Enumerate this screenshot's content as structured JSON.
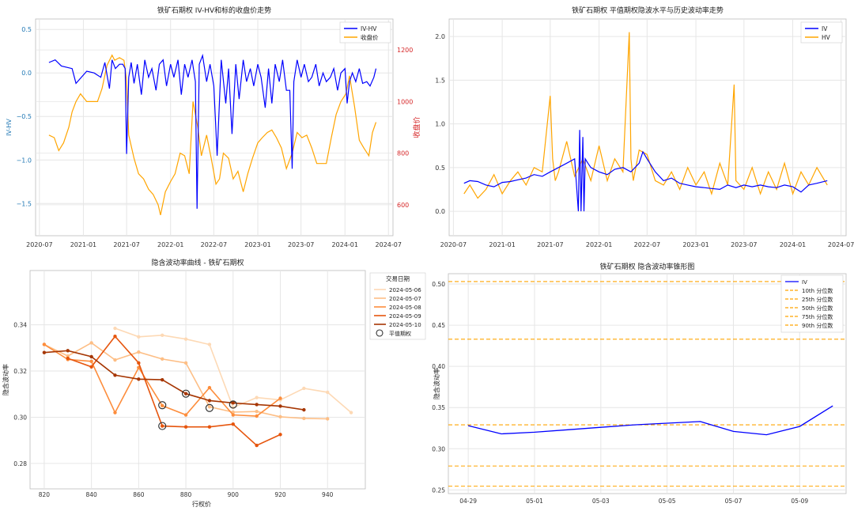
{
  "colors": {
    "iv": "#0000ff",
    "hv": "#ffa500",
    "grid": "#e6e6e6",
    "spine": "#bbbbbb",
    "left_axis": "#1f77b4",
    "right_axis": "#d62728",
    "smile": [
      "#fdd9b5",
      "#fdbe85",
      "#fd8d3c",
      "#e6550d",
      "#a63603"
    ]
  },
  "chart_data": [
    {
      "type": "line",
      "title": "铁矿石期权 IV-HV和标的收盘价走势",
      "xlabel": "",
      "ylabel": "IV-HV",
      "ylabel_right": "收盘价",
      "x_ticks": [
        "2020-07",
        "2021-01",
        "2021-07",
        "2022-01",
        "2022-07",
        "2023-01",
        "2023-07",
        "2024-01",
        "2024-07"
      ],
      "y_ticks": [
        "0.5",
        "0.0",
        "−0.5",
        "−1.0",
        "−1.5"
      ],
      "y_right_ticks": [
        "1200",
        "1000",
        "800",
        "600"
      ],
      "xlim": [
        "2020-06-15",
        "2024-07-20"
      ],
      "ylim": [
        -1.87,
        0.62
      ],
      "ylim_right": [
        480,
        1320
      ],
      "grid": true,
      "legend": {
        "position": "top-right",
        "entries": [
          "IV-HV",
          "收盘价"
        ]
      },
      "series": [
        {
          "name": "IV-HV",
          "axis": "left",
          "x": [
            "2020-08-10",
            "2020-09-05",
            "2020-10-01",
            "2020-11-15",
            "2020-12-01",
            "2021-01-15",
            "2021-02-15",
            "2021-03-15",
            "2021-04-01",
            "2021-04-20",
            "2021-05-01",
            "2021-05-15",
            "2021-06-01",
            "2021-06-15",
            "2021-06-25",
            "2021-07-01",
            "2021-07-10",
            "2021-07-20",
            "2021-08-01",
            "2021-08-15",
            "2021-09-01",
            "2021-09-15",
            "2021-10-01",
            "2021-10-15",
            "2021-11-01",
            "2021-11-15",
            "2021-12-01",
            "2021-12-15",
            "2022-01-01",
            "2022-01-15",
            "2022-02-01",
            "2022-02-15",
            "2022-03-01",
            "2022-03-15",
            "2022-04-01",
            "2022-04-15",
            "2022-04-22",
            "2022-05-01",
            "2022-05-15",
            "2022-06-01",
            "2022-06-15",
            "2022-07-01",
            "2022-07-15",
            "2022-08-01",
            "2022-08-20",
            "2022-09-01",
            "2022-09-15",
            "2022-10-01",
            "2022-10-15",
            "2022-11-01",
            "2022-11-15",
            "2022-12-01",
            "2022-12-15",
            "2023-01-01",
            "2023-01-15",
            "2023-02-01",
            "2023-02-15",
            "2023-03-01",
            "2023-03-15",
            "2023-04-01",
            "2023-04-15",
            "2023-05-01",
            "2023-05-15",
            "2023-05-25",
            "2023-06-01",
            "2023-06-15",
            "2023-07-01",
            "2023-07-15",
            "2023-08-01",
            "2023-08-15",
            "2023-09-01",
            "2023-09-15",
            "2023-10-01",
            "2023-10-15",
            "2023-11-01",
            "2023-11-15",
            "2023-12-01",
            "2023-12-15",
            "2024-01-01",
            "2024-01-10",
            "2024-01-20",
            "2024-02-01",
            "2024-02-15",
            "2024-03-01",
            "2024-03-15",
            "2024-04-01",
            "2024-04-15",
            "2024-05-01",
            "2024-05-10"
          ],
          "values": [
            0.12,
            0.15,
            0.08,
            0.05,
            -0.12,
            0.02,
            0.0,
            -0.05,
            0.12,
            -0.18,
            0.15,
            0.05,
            0.1,
            0.1,
            0.05,
            -0.93,
            -0.05,
            0.12,
            -0.12,
            0.1,
            -0.25,
            0.15,
            -0.05,
            0.05,
            -0.2,
            0.1,
            0.15,
            -0.15,
            0.1,
            -0.05,
            0.15,
            -0.25,
            0.1,
            -0.05,
            0.15,
            -0.1,
            -1.56,
            0.1,
            0.2,
            -0.1,
            0.1,
            -0.15,
            -0.95,
            0.15,
            -0.35,
            0.05,
            -0.7,
            0.1,
            -0.3,
            0.15,
            -0.1,
            0.05,
            -0.15,
            0.1,
            -0.05,
            -0.4,
            0.05,
            -0.35,
            0.1,
            -0.1,
            0.15,
            -0.2,
            -0.2,
            -1.1,
            -0.1,
            0.15,
            -0.05,
            0.1,
            -0.1,
            -0.05,
            0.1,
            -0.15,
            0.0,
            -0.1,
            -0.05,
            0.05,
            -0.2,
            0.0,
            0.05,
            -0.35,
            -0.1,
            0.0,
            -0.1,
            0.05,
            -0.12,
            -0.1,
            -0.15,
            -0.05,
            0.05
          ]
        },
        {
          "name": "收盘价",
          "axis": "right",
          "x": [
            "2020-08-10",
            "2020-09-01",
            "2020-09-20",
            "2020-10-10",
            "2020-11-01",
            "2020-11-15",
            "2020-12-01",
            "2020-12-20",
            "2021-01-15",
            "2021-02-01",
            "2021-03-01",
            "2021-03-20",
            "2021-04-10",
            "2021-05-01",
            "2021-05-12",
            "2021-06-01",
            "2021-06-20",
            "2021-07-01",
            "2021-07-10",
            "2021-08-01",
            "2021-08-20",
            "2021-09-10",
            "2021-10-01",
            "2021-10-20",
            "2021-11-10",
            "2021-11-20",
            "2021-12-10",
            "2022-01-01",
            "2022-01-20",
            "2022-02-10",
            "2022-03-01",
            "2022-03-20",
            "2022-04-05",
            "2022-04-25",
            "2022-05-10",
            "2022-06-01",
            "2022-06-20",
            "2022-07-10",
            "2022-07-25",
            "2022-08-10",
            "2022-09-01",
            "2022-09-20",
            "2022-10-10",
            "2022-11-01",
            "2022-11-20",
            "2022-12-10",
            "2023-01-01",
            "2023-01-20",
            "2023-02-10",
            "2023-03-01",
            "2023-03-20",
            "2023-04-10",
            "2023-05-01",
            "2023-05-25",
            "2023-06-15",
            "2023-07-05",
            "2023-07-25",
            "2023-08-15",
            "2023-09-05",
            "2023-09-25",
            "2023-10-15",
            "2023-11-05",
            "2023-11-25",
            "2023-12-15",
            "2024-01-05",
            "2024-01-20",
            "2024-02-10",
            "2024-03-01",
            "2024-03-20",
            "2024-04-10",
            "2024-04-25",
            "2024-05-10"
          ],
          "values": [
            870,
            860,
            810,
            840,
            900,
            960,
            1000,
            1030,
            1000,
            1000,
            1000,
            1050,
            1140,
            1180,
            1160,
            1170,
            1160,
            1080,
            870,
            780,
            720,
            700,
            660,
            640,
            600,
            560,
            650,
            690,
            720,
            800,
            790,
            720,
            1000,
            900,
            790,
            870,
            780,
            680,
            700,
            800,
            780,
            700,
            730,
            650,
            720,
            780,
            840,
            860,
            880,
            890,
            860,
            820,
            740,
            800,
            880,
            860,
            870,
            820,
            760,
            760,
            760,
            860,
            950,
            1000,
            1030,
            1100,
            980,
            850,
            820,
            790,
            880,
            920
          ]
        }
      ]
    },
    {
      "type": "line",
      "title": "铁矿石期权 平值期权隐波水平与历史波动率走势",
      "xlabel": "",
      "ylabel": "",
      "x_ticks": [
        "2020-07",
        "2021-01",
        "2021-07",
        "2022-01",
        "2022-07",
        "2023-01",
        "2023-07",
        "2024-01",
        "2024-07"
      ],
      "y_ticks": [
        "2.0",
        "1.5",
        "1.0",
        "0.5",
        "0.0"
      ],
      "xlim": [
        "2020-06-15",
        "2024-07-20"
      ],
      "ylim": [
        -0.28,
        2.2
      ],
      "grid": true,
      "legend": {
        "position": "top-right",
        "entries": [
          "IV",
          "HV"
        ]
      },
      "series": [
        {
          "name": "IV",
          "x": [
            "2020-08-10",
            "2020-09-01",
            "2020-10-01",
            "2020-11-01",
            "2020-12-01",
            "2021-01-01",
            "2021-02-01",
            "2021-03-01",
            "2021-04-01",
            "2021-05-01",
            "2021-06-01",
            "2021-07-01",
            "2021-08-01",
            "2021-09-01",
            "2021-10-01",
            "2021-10-15",
            "2021-10-20",
            "2021-10-25",
            "2021-11-01",
            "2021-11-05",
            "2021-11-10",
            "2021-11-20",
            "2021-12-01",
            "2022-01-01",
            "2022-02-01",
            "2022-03-01",
            "2022-04-01",
            "2022-05-01",
            "2022-06-01",
            "2022-06-15",
            "2022-07-01",
            "2022-08-01",
            "2022-09-01",
            "2022-10-01",
            "2022-11-01",
            "2022-12-01",
            "2023-01-01",
            "2023-02-01",
            "2023-03-01",
            "2023-04-01",
            "2023-05-01",
            "2023-06-01",
            "2023-07-01",
            "2023-08-01",
            "2023-09-01",
            "2023-10-01",
            "2023-11-01",
            "2023-12-01",
            "2024-01-01",
            "2024-02-01",
            "2024-03-01",
            "2024-04-01",
            "2024-05-10"
          ],
          "values": [
            0.32,
            0.35,
            0.34,
            0.3,
            0.28,
            0.33,
            0.34,
            0.36,
            0.38,
            0.42,
            0.4,
            0.45,
            0.5,
            0.55,
            0.6,
            0.0,
            0.93,
            0.0,
            0.85,
            0.0,
            0.6,
            0.55,
            0.5,
            0.45,
            0.42,
            0.48,
            0.5,
            0.45,
            0.55,
            0.68,
            0.6,
            0.45,
            0.35,
            0.38,
            0.32,
            0.3,
            0.28,
            0.27,
            0.26,
            0.25,
            0.3,
            0.27,
            0.3,
            0.28,
            0.3,
            0.28,
            0.27,
            0.3,
            0.28,
            0.22,
            0.3,
            0.32,
            0.35
          ]
        },
        {
          "name": "HV",
          "x": [
            "2020-08-10",
            "2020-09-01",
            "2020-10-01",
            "2020-11-01",
            "2020-12-01",
            "2021-01-01",
            "2021-02-01",
            "2021-03-01",
            "2021-04-01",
            "2021-05-01",
            "2021-06-01",
            "2021-07-01",
            "2021-07-10",
            "2021-07-20",
            "2021-08-01",
            "2021-09-01",
            "2021-10-01",
            "2021-11-01",
            "2021-12-01",
            "2022-01-01",
            "2022-02-01",
            "2022-03-01",
            "2022-04-01",
            "2022-04-25",
            "2022-05-01",
            "2022-05-10",
            "2022-06-01",
            "2022-07-01",
            "2022-08-01",
            "2022-09-01",
            "2022-10-01",
            "2022-11-01",
            "2022-12-01",
            "2023-01-01",
            "2023-02-01",
            "2023-03-01",
            "2023-04-01",
            "2023-05-01",
            "2023-05-25",
            "2023-06-01",
            "2023-07-01",
            "2023-08-01",
            "2023-09-01",
            "2023-10-01",
            "2023-11-01",
            "2023-12-01",
            "2024-01-01",
            "2024-02-01",
            "2024-03-01",
            "2024-04-01",
            "2024-05-10"
          ],
          "values": [
            0.2,
            0.3,
            0.15,
            0.25,
            0.42,
            0.2,
            0.35,
            0.45,
            0.3,
            0.5,
            0.45,
            1.32,
            0.6,
            0.35,
            0.45,
            0.8,
            0.4,
            0.6,
            0.35,
            0.75,
            0.35,
            0.6,
            0.45,
            2.05,
            0.6,
            0.35,
            0.7,
            0.65,
            0.35,
            0.3,
            0.45,
            0.25,
            0.5,
            0.3,
            0.45,
            0.2,
            0.55,
            0.3,
            1.45,
            0.35,
            0.25,
            0.5,
            0.2,
            0.45,
            0.25,
            0.55,
            0.2,
            0.45,
            0.3,
            0.5,
            0.3
          ]
        }
      ]
    },
    {
      "type": "line",
      "title": "隐含波动率曲线 - 铁矿石期权",
      "xlabel": "行权价",
      "ylabel": "隐含波动率",
      "x_ticks": [
        "820",
        "840",
        "860",
        "880",
        "900",
        "920",
        "940"
      ],
      "y_ticks": [
        "0.34",
        "0.32",
        "0.30",
        "0.28"
      ],
      "xlim": [
        814,
        956
      ],
      "ylim": [
        0.269,
        0.3635
      ],
      "grid": true,
      "legend": {
        "position": "top-right",
        "title": "交易日期",
        "entries": [
          "2024-05-06",
          "2024-05-07",
          "2024-05-08",
          "2024-05-09",
          "2024-05-10",
          "平值期权"
        ]
      },
      "series": [
        {
          "name": "2024-05-06",
          "x": [
            850,
            860,
            870,
            880,
            890,
            900,
            910,
            920,
            930,
            940,
            950
          ],
          "values": [
            0.3385,
            0.3348,
            0.3355,
            0.3338,
            0.3315,
            0.3042,
            0.3085,
            0.3075,
            0.3125,
            0.3108,
            0.302
          ],
          "atm": [
            890,
            0.304
          ]
        },
        {
          "name": "2024-05-07",
          "x": [
            820,
            830,
            840,
            850,
            860,
            870,
            880,
            890,
            900,
            910,
            920,
            930,
            940
          ],
          "values": [
            0.3315,
            0.3265,
            0.3322,
            0.3248,
            0.3282,
            0.3252,
            0.3235,
            0.3045,
            0.3022,
            0.3025,
            0.3002,
            0.2995,
            0.2993
          ],
          "atm": [
            900,
            0.3055
          ]
        },
        {
          "name": "2024-05-08",
          "x": [
            820,
            830,
            840,
            850,
            860,
            870,
            880,
            890,
            900,
            910,
            920
          ],
          "values": [
            0.3315,
            0.325,
            0.3242,
            0.302,
            0.3215,
            0.305,
            0.301,
            0.3128,
            0.301,
            0.3005,
            0.3082
          ],
          "atm": [
            870,
            0.3052
          ]
        },
        {
          "name": "2024-05-09",
          "x": [
            830,
            840,
            850,
            860,
            870,
            880,
            890,
            900,
            910,
            920
          ],
          "values": [
            0.3255,
            0.3218,
            0.335,
            0.3235,
            0.2962,
            0.2958,
            0.2958,
            0.297,
            0.2878,
            0.2925
          ],
          "atm": [
            870,
            0.2962
          ]
        },
        {
          "name": "2024-05-10",
          "x": [
            820,
            830,
            840,
            850,
            860,
            870,
            880,
            890,
            900,
            910,
            920,
            930
          ],
          "values": [
            0.328,
            0.3288,
            0.3262,
            0.3182,
            0.3165,
            0.3162,
            0.3102,
            0.3072,
            0.3062,
            0.3055,
            0.3048,
            0.3032
          ],
          "atm": [
            880,
            0.3102
          ]
        }
      ]
    },
    {
      "type": "line",
      "title": "铁矿石期权 隐含波动率锥形图",
      "xlabel": "",
      "ylabel": "隐含波动率",
      "x_ticks": [
        "04-29",
        "05-01",
        "05-03",
        "05-05",
        "05-07",
        "05-09"
      ],
      "y_ticks": [
        "0.50",
        "0.45",
        "0.40",
        "0.35",
        "0.30",
        "0.25"
      ],
      "xlim": [
        -0.6,
        11.4
      ],
      "ylim": [
        0.2455,
        0.5125
      ],
      "grid": true,
      "legend": {
        "position": "top-right",
        "entries": [
          "IV",
          "10th 分位数",
          "25th 分位数",
          "50th 分位数",
          "75th 分位数",
          "90th 分位数"
        ]
      },
      "series": [
        {
          "name": "IV",
          "x": [
            0,
            1,
            2,
            3,
            4,
            5,
            6,
            7,
            8,
            9,
            10,
            11
          ],
          "values": [
            0.328,
            0.318,
            0.32,
            0.323,
            0.326,
            0.329,
            0.331,
            0.333,
            0.321,
            0.317,
            0.327,
            0.352
          ]
        }
      ],
      "percentiles": {
        "10th 分位数": 0.2545,
        "25th 分位数": 0.279,
        "50th 分位数": 0.329,
        "75th 分位数": 0.433,
        "90th 分位数": 0.503
      }
    }
  ]
}
